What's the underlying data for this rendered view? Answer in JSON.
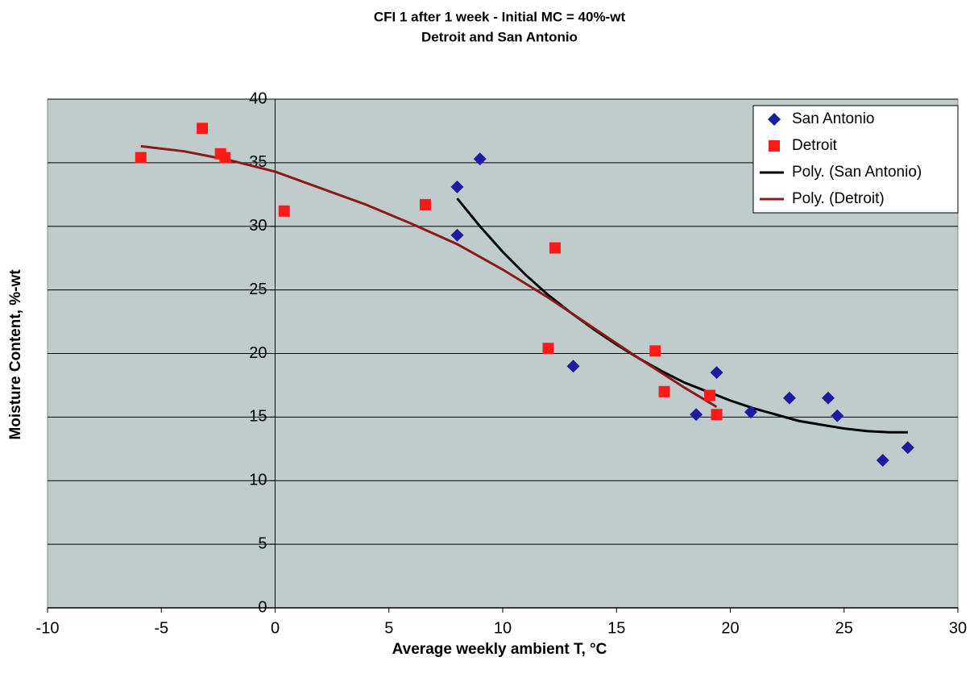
{
  "chart_data": {
    "type": "scatter",
    "title": "CFI 1 after 1 week - Initial MC = 40%-wt",
    "subtitle": "Detroit and San Antonio",
    "x_label": "Average weekly ambient T, °C",
    "y_label": "Moisture Content, %-wt",
    "xlim": [
      -10,
      30
    ],
    "xticks": [
      -10,
      -5,
      0,
      5,
      10,
      15,
      20,
      25,
      30
    ],
    "ylim": [
      0,
      40
    ],
    "yticks": [
      0,
      5,
      10,
      15,
      20,
      25,
      30,
      35,
      40
    ],
    "grid": true,
    "legend": "upper right",
    "background": "#c0cccc",
    "series": [
      {
        "name": "San Antonio",
        "color": "#1c1ca3",
        "marker": "diamond",
        "x": [
          8.0,
          8.0,
          9.0,
          13.1,
          18.5,
          19.4,
          20.9,
          22.6,
          24.3,
          24.7,
          26.7,
          27.8
        ],
        "values": [
          33.1,
          29.3,
          35.3,
          19.0,
          15.2,
          18.5,
          15.4,
          16.5,
          16.5,
          15.1,
          11.6,
          12.6
        ]
      },
      {
        "name": "Detroit",
        "color": "#ff1a1a",
        "marker": "square",
        "x": [
          -5.9,
          -3.2,
          -2.4,
          -2.2,
          0.4,
          6.6,
          12.3,
          12.0,
          16.7,
          17.1,
          19.1,
          19.4
        ],
        "values": [
          35.4,
          37.7,
          35.7,
          35.4,
          31.2,
          31.7,
          28.3,
          20.4,
          20.2,
          17.0,
          16.7,
          15.2
        ]
      },
      {
        "name": "Poly. (San Antonio)",
        "color": "#000000",
        "marker": "line",
        "x": [
          8,
          9,
          10,
          11,
          12,
          13,
          14,
          15,
          16,
          17,
          18,
          19,
          20,
          21,
          22,
          23,
          24,
          25,
          26,
          27,
          27.8
        ],
        "values": [
          32.2,
          30.0,
          28.0,
          26.2,
          24.6,
          23.2,
          21.9,
          20.7,
          19.6,
          18.6,
          17.7,
          17.0,
          16.3,
          15.7,
          15.2,
          14.7,
          14.4,
          14.1,
          13.9,
          13.8,
          13.8
        ]
      },
      {
        "name": "Poly. (Detroit)",
        "color": "#8b1a1a",
        "marker": "line",
        "x": [
          -5.9,
          -4,
          -2,
          0,
          2,
          4,
          6,
          8,
          10,
          12,
          14,
          16,
          18,
          19.4
        ],
        "values": [
          36.3,
          35.9,
          35.2,
          34.3,
          33.0,
          31.7,
          30.2,
          28.6,
          26.6,
          24.4,
          22.0,
          19.6,
          17.3,
          15.8
        ]
      }
    ]
  }
}
